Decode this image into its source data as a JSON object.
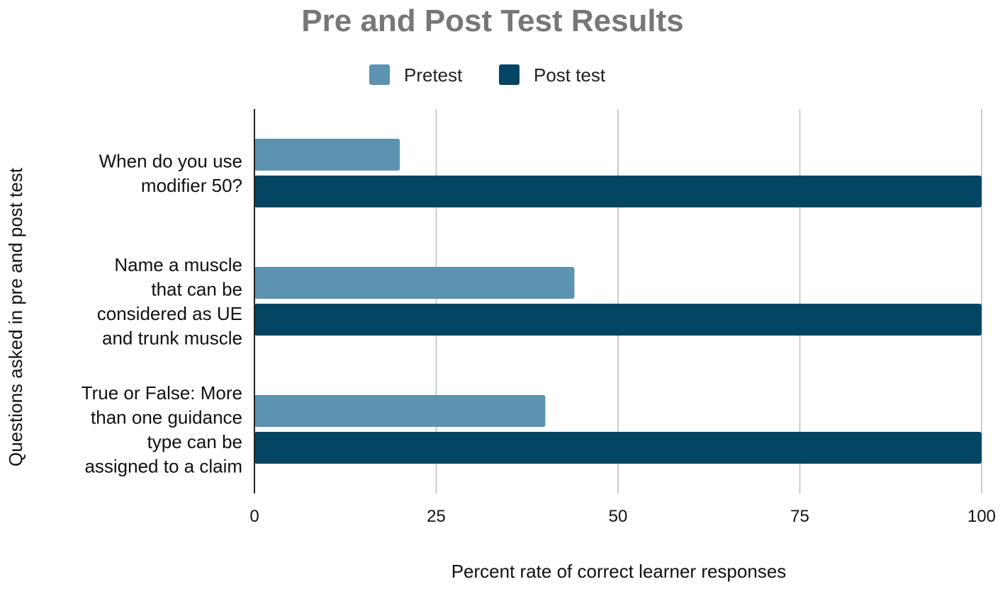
{
  "chart_data": {
    "type": "bar",
    "orientation": "horizontal",
    "title": "Pre and Post Test Results",
    "xlabel": "Percent rate of correct learner responses",
    "ylabel": "Questions asked in pre and post test",
    "xlim": [
      0,
      100
    ],
    "xticks": [
      "0",
      "25",
      "50",
      "75",
      "100"
    ],
    "legend_position": "top",
    "grid": true,
    "categories": [
      [
        "When do you use",
        "modifier 50?"
      ],
      [
        "Name a muscle",
        "that can be",
        "considered as UE",
        "and trunk muscle"
      ],
      [
        "True or False: More",
        "than one guidance",
        "type can be",
        "assigned to a claim"
      ]
    ],
    "series": [
      {
        "name": "Pretest",
        "color": "#5b93b0",
        "values": [
          20,
          44,
          40
        ]
      },
      {
        "name": "Post test",
        "color": "#034563",
        "values": [
          100,
          100,
          100
        ]
      }
    ]
  }
}
